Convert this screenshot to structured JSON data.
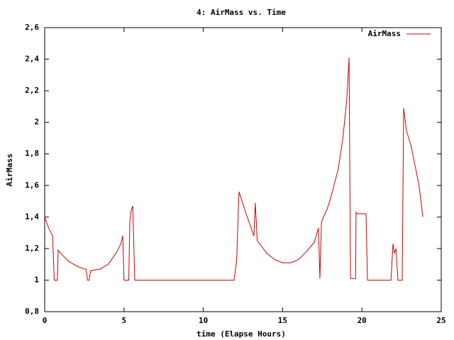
{
  "chart_data": {
    "type": "line",
    "title": "4: AirMass vs. Time",
    "xlabel": "time (Elapse Hours)",
    "ylabel": "AirMass",
    "xlim": [
      0,
      25
    ],
    "ylim": [
      0.8,
      2.6
    ],
    "xticks": [
      0,
      5,
      10,
      15,
      20,
      25
    ],
    "yticks": [
      {
        "value": 0.8,
        "label": "0,8"
      },
      1,
      {
        "value": 1.2,
        "label": "1,2"
      },
      {
        "value": 1.4,
        "label": "1,4"
      },
      {
        "value": 1.6,
        "label": "1,6"
      },
      {
        "value": 1.8,
        "label": "1,8"
      },
      2,
      {
        "value": 2.2,
        "label": "2,2"
      },
      {
        "value": 2.4,
        "label": "2,4"
      },
      {
        "value": 2.6,
        "label": "2,6"
      }
    ],
    "legend": "top-right",
    "series": [
      {
        "name": "AirMass",
        "color": "#cc0000",
        "x": [
          0,
          0.25,
          0.5,
          0.6,
          0.8,
          0.85,
          1.0,
          1.5,
          2.0,
          2.5,
          2.6,
          2.7,
          2.8,
          2.9,
          3.5,
          4.0,
          4.5,
          4.8,
          4.92,
          5.0,
          5.3,
          5.37,
          5.45,
          5.55,
          5.68,
          11.94,
          12.1,
          12.25,
          12.7,
          13.19,
          13.28,
          13.4,
          14.0,
          14.5,
          15.0,
          15.5,
          16.0,
          16.5,
          17.0,
          17.26,
          17.35,
          17.45,
          17.8,
          18.0,
          18.5,
          18.8,
          19.05,
          19.19,
          19.28,
          19.6,
          19.63,
          19.7,
          20.26,
          20.35,
          21.83,
          21.96,
          22.05,
          22.15,
          22.27,
          22.54,
          22.63,
          22.8,
          23.1,
          23.6,
          23.84
        ],
        "values": [
          1.4,
          1.33,
          1.28,
          1.0,
          1.0,
          1.19,
          1.17,
          1.12,
          1.09,
          1.07,
          1.07,
          1.0,
          1.0,
          1.06,
          1.07,
          1.1,
          1.17,
          1.23,
          1.28,
          1.0,
          1.0,
          1.38,
          1.44,
          1.47,
          1.0,
          1.0,
          1.12,
          1.56,
          1.42,
          1.28,
          1.49,
          1.25,
          1.17,
          1.13,
          1.11,
          1.11,
          1.13,
          1.18,
          1.24,
          1.33,
          1.01,
          1.37,
          1.45,
          1.51,
          1.7,
          1.9,
          2.15,
          2.41,
          1.01,
          1.01,
          1.43,
          1.42,
          1.42,
          1.0,
          1.0,
          1.23,
          1.17,
          1.2,
          1.0,
          1.0,
          2.09,
          1.95,
          1.85,
          1.6,
          1.4
        ]
      }
    ]
  }
}
